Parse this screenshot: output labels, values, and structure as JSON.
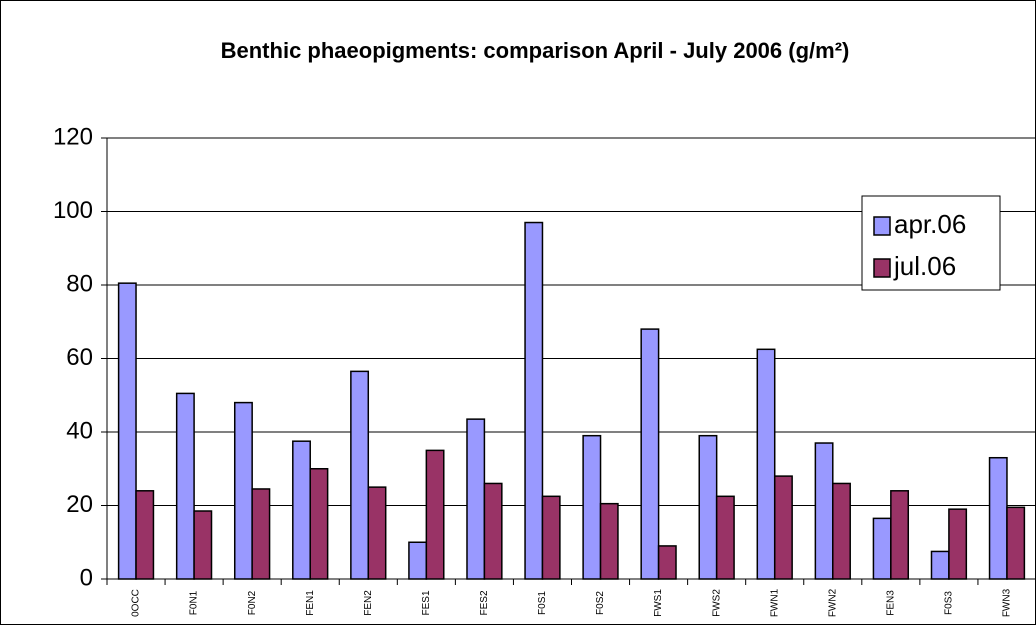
{
  "chart_data": {
    "type": "bar",
    "title": "Benthic phaeopigments: comparison April - July 2006 (g/m²)",
    "categories": [
      "0OCC",
      "F0N1",
      "F0N2",
      "FEN1",
      "FEN2",
      "FES1",
      "FES2",
      "F0S1",
      "F0S2",
      "FWS1",
      "FWS2",
      "FWN1",
      "FWN2",
      "FEN3",
      "F0S3",
      "FWN3"
    ],
    "series": [
      {
        "name": "apr.06",
        "color": "#9999ff",
        "values": [
          80.5,
          50.5,
          48,
          37.5,
          56.5,
          10,
          43.5,
          97,
          39,
          68,
          39,
          62.5,
          37,
          16.5,
          7.5,
          33
        ]
      },
      {
        "name": "jul.06",
        "color": "#993366",
        "values": [
          24,
          18.5,
          24.5,
          30,
          25,
          35,
          26,
          22.5,
          20.5,
          9,
          22.5,
          28,
          26,
          24,
          19,
          19.5
        ]
      }
    ],
    "ylim": [
      0,
      120
    ],
    "yticks": [
      0,
      20,
      40,
      60,
      80,
      100,
      120
    ],
    "grid": true,
    "legend": "upper-right"
  }
}
